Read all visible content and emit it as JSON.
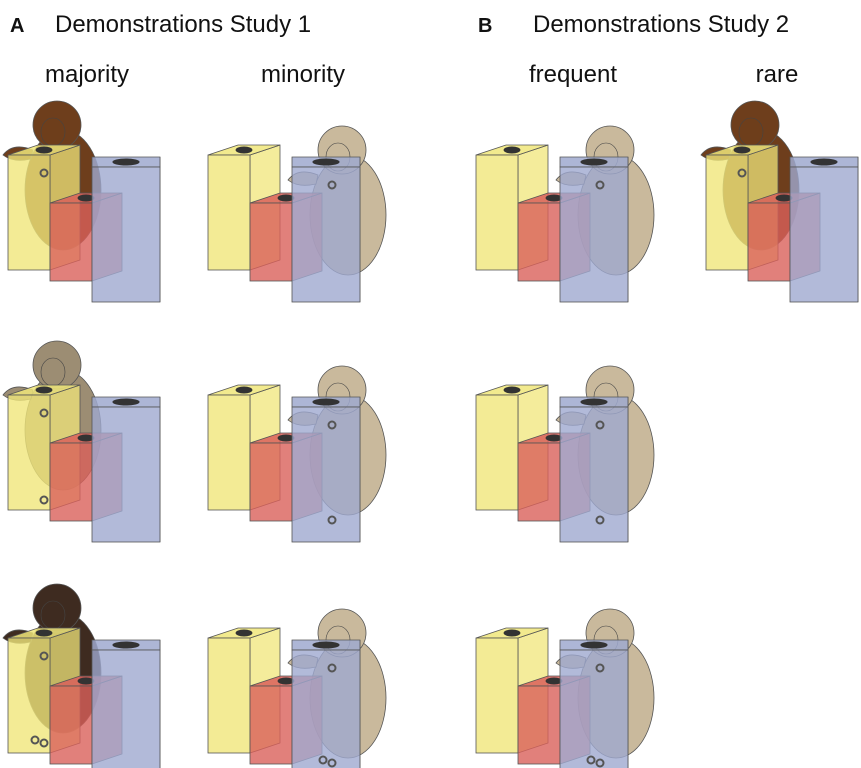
{
  "panels": [
    {
      "letter": "A",
      "title": "Demonstrations Study 1",
      "columns": [
        "majority",
        "minority"
      ]
    },
    {
      "letter": "B",
      "title": "Demonstrations Study 2",
      "columns": [
        "frequent",
        "rare"
      ]
    }
  ]
}
